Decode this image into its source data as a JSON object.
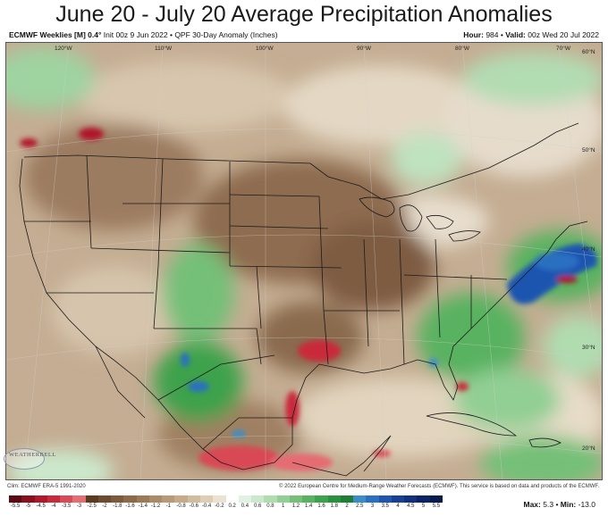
{
  "title": "June 20 - July 20 Average Precipitation Anomalies",
  "header": {
    "model": "ECMWF Weeklies [M] 0.4°",
    "init": "Init 00z 9 Jun 2022",
    "product": "QPF 30-Day Anomaly (Inches)",
    "hour_label": "Hour:",
    "hour_value": "984",
    "valid_label": "Valid:",
    "valid_value": "00z Wed 20 Jul 2022"
  },
  "map": {
    "lon_labels": [
      "120°W",
      "110°W",
      "100°W",
      "90°W",
      "80°W",
      "70°W"
    ],
    "lat_labels": [
      "60°N",
      "50°N",
      "40°N",
      "30°N",
      "20°N"
    ]
  },
  "footer": {
    "clim": "Clim: ECMWF ERA-5 1991-2020",
    "copyright": "© 2022 European Centre for Medium-Range Weather Forecasts (ECMWF). This service is based on data and products of the ECMWF.",
    "logo_text": "WEATHERBELL",
    "max_label": "Max:",
    "max_value": "5.3",
    "min_label": "Min:",
    "min_value": "-13.0"
  },
  "colorbar": {
    "labels": [
      "-5.5",
      "-5",
      "-4.5",
      "-4",
      "-3.5",
      "-3",
      "-2.5",
      "-2",
      "-1.8",
      "-1.6",
      "-1.4",
      "-1.2",
      "-1",
      "-0.8",
      "-0.6",
      "-0.4",
      "-0.2",
      "0.2",
      "0.4",
      "0.6",
      "0.8",
      "1",
      "1.2",
      "1.4",
      "1.6",
      "1.8",
      "2",
      "2.5",
      "3",
      "3.5",
      "4",
      "4.5",
      "5",
      "5.5"
    ],
    "colors": [
      "#5a0a14",
      "#8a1020",
      "#b0182c",
      "#c92a3a",
      "#d84a55",
      "#e46c72",
      "#5c3a22",
      "#6e4a2e",
      "#7e5a3c",
      "#8e6a4a",
      "#9c7a58",
      "#aa8a68",
      "#b89a78",
      "#c6aa8a",
      "#d2bca0",
      "#dfcdb6",
      "#ece2d2",
      "#ffffff",
      "#e2f2e2",
      "#cce8cc",
      "#b0dcb0",
      "#92cf94",
      "#74c078",
      "#58b260",
      "#3ea24c",
      "#2a923e",
      "#1e7e34",
      "#3a8ec8",
      "#2a6fc0",
      "#1f55b0",
      "#183f98",
      "#12307e",
      "#0c2466",
      "#081a4e"
    ]
  }
}
